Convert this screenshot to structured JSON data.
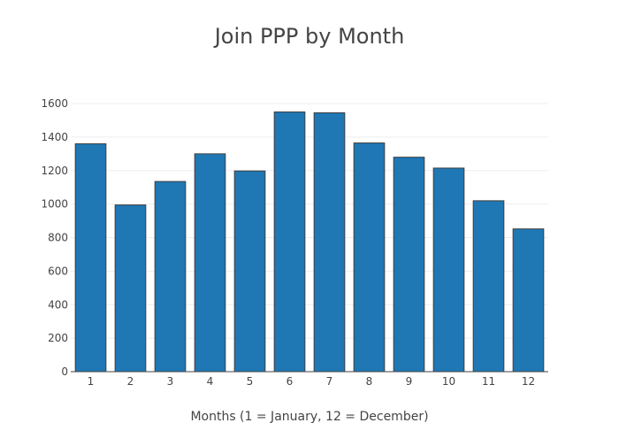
{
  "chart_data": {
    "type": "bar",
    "title": "Join PPP by Month",
    "xlabel": "Months (1 = January, 12 = December)",
    "ylabel": "",
    "categories": [
      "1",
      "2",
      "3",
      "4",
      "5",
      "6",
      "7",
      "8",
      "9",
      "10",
      "11",
      "12"
    ],
    "values": [
      1360,
      995,
      1135,
      1300,
      1198,
      1550,
      1545,
      1365,
      1280,
      1215,
      1020,
      852
    ],
    "yticks": [
      0,
      200,
      400,
      600,
      800,
      1000,
      1200,
      1400,
      1600
    ],
    "ylim": [
      0,
      1690
    ],
    "grid": true,
    "legend": "none",
    "bar_color": "#1f77b4",
    "bar_edge_color": "#3f3f3f",
    "grid_color": "#eeeeee",
    "axis_color": "#444444",
    "text_color": "#444444"
  }
}
